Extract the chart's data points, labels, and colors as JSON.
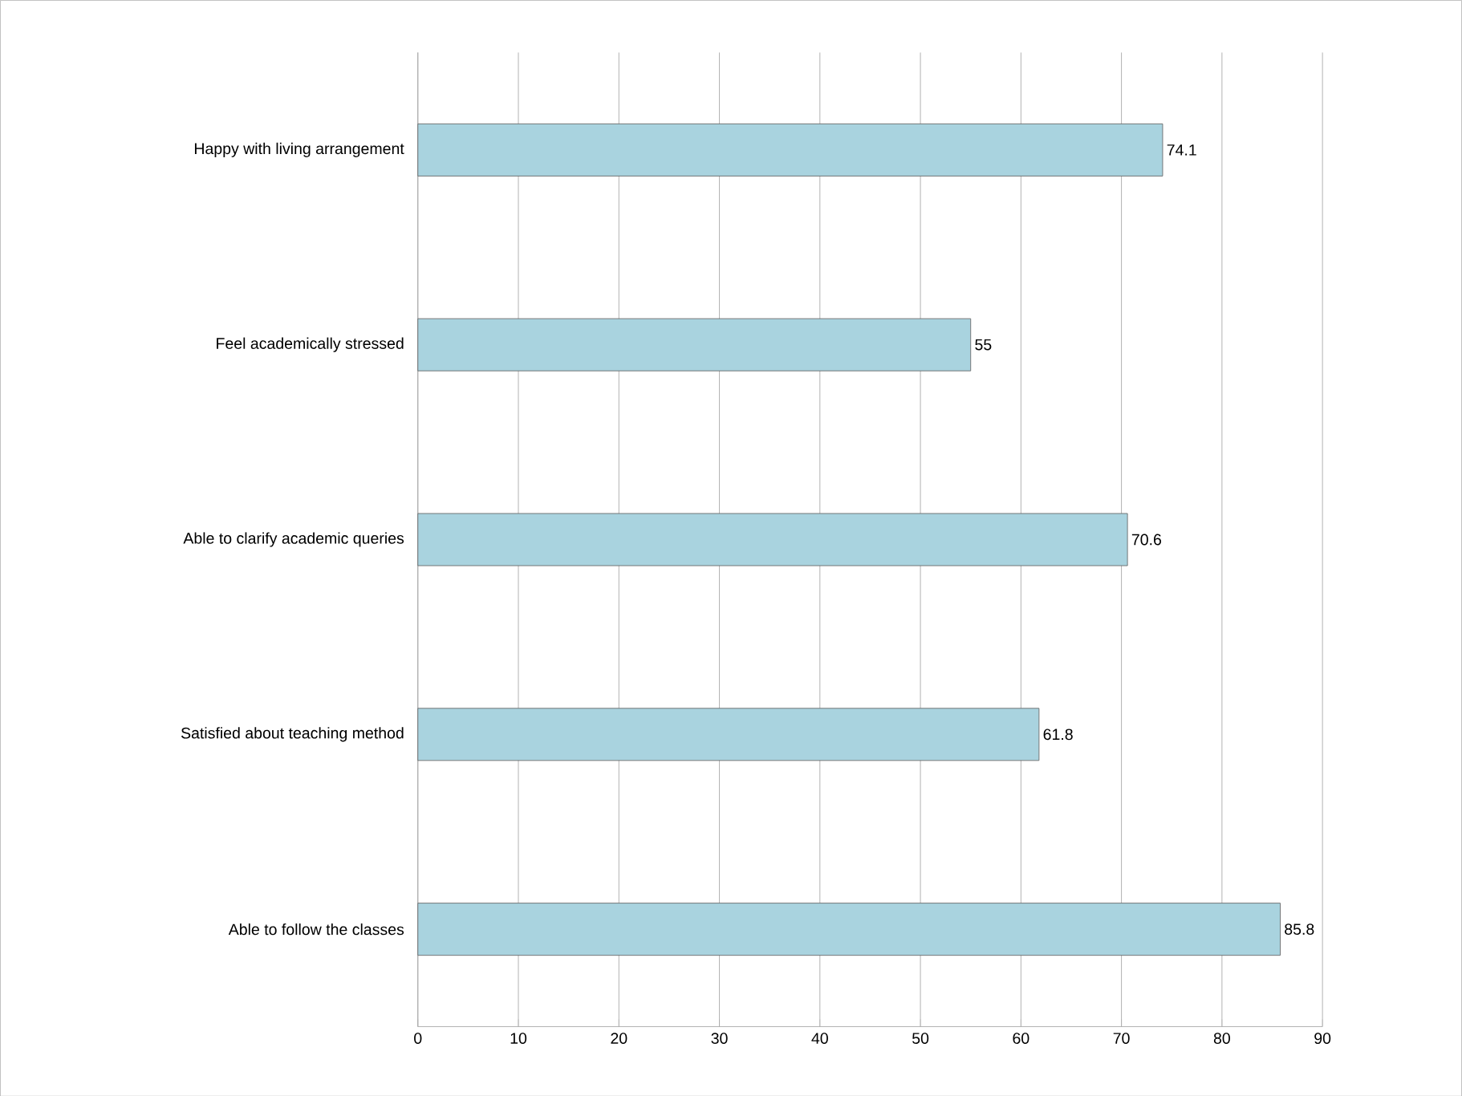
{
  "chart_data": {
    "type": "bar",
    "orientation": "horizontal",
    "categories": [
      "Happy with living arrangement",
      "Feel academically stressed",
      "Able to clarify academic queries",
      "Satisfied about teaching  method",
      "Able to follow the classes"
    ],
    "values": [
      74.1,
      55,
      70.6,
      61.8,
      85.8
    ],
    "color": "#a9d3df",
    "xlim": [
      0,
      90
    ],
    "xticks": [
      0,
      10,
      20,
      30,
      40,
      50,
      60,
      70,
      80,
      90
    ],
    "grid": "x",
    "data_labels": true
  }
}
